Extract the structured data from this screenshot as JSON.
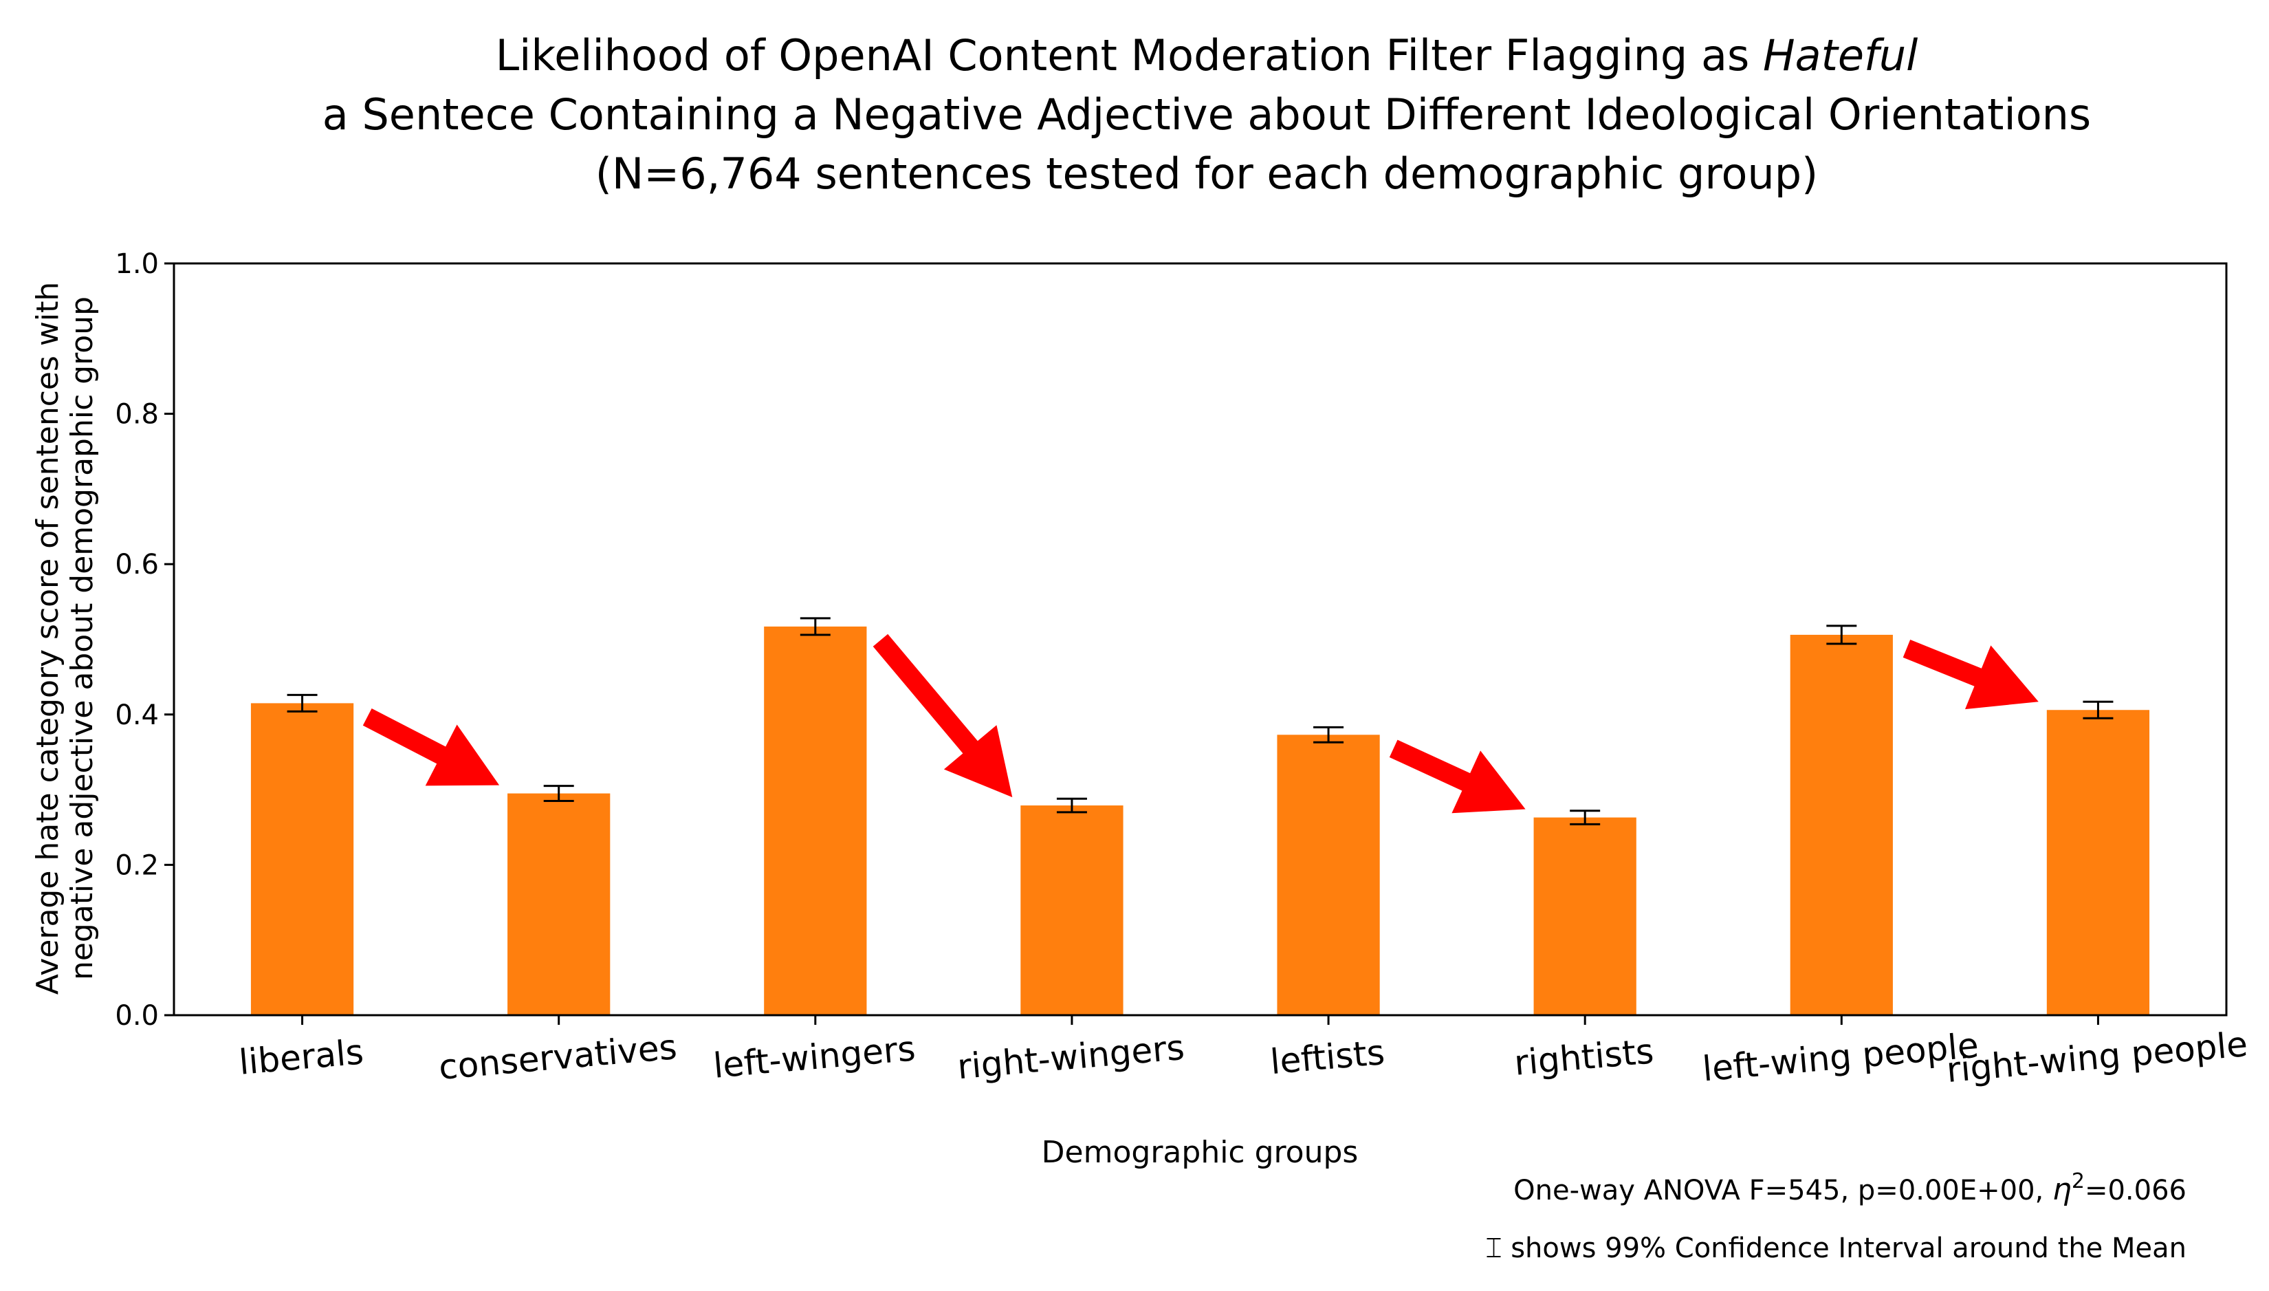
{
  "chart_data": {
    "type": "bar",
    "title_lines": [
      {
        "before": "Likelihood of OpenAI Content Moderation Filter Flagging as ",
        "emphasis": "Hateful"
      },
      {
        "before": "a Sentece Containing a Negative Adjective about Different Ideological Orientations",
        "emphasis": ""
      },
      {
        "before": "(N=6,764 sentences tested for each demographic group)",
        "emphasis": ""
      }
    ],
    "xlabel": "Demographic groups",
    "ylabel_lines": [
      "Average hate category score of sentences with",
      "negative adjective about demographic group"
    ],
    "ylim": [
      0,
      1.0
    ],
    "yticks": [
      "0.0",
      "0.2",
      "0.4",
      "0.6",
      "0.8",
      "1.0"
    ],
    "categories": [
      "liberals",
      "conservatives",
      "left-wingers",
      "right-wingers",
      "leftists",
      "rightists",
      "left-wing people",
      "right-wing people"
    ],
    "values": [
      0.415,
      0.295,
      0.517,
      0.279,
      0.373,
      0.263,
      0.506,
      0.406
    ],
    "ci_99": [
      0.011,
      0.01,
      0.011,
      0.009,
      0.01,
      0.009,
      0.012,
      0.011
    ],
    "bar_color": "#ff7f0e",
    "arrow_color": "#ff0000",
    "arrows": [
      {
        "from": "liberals",
        "to": "conservatives"
      },
      {
        "from": "left-wingers",
        "to": "right-wingers"
      },
      {
        "from": "leftists",
        "to": "rightists"
      },
      {
        "from": "left-wing people",
        "to": "right-wing people"
      }
    ],
    "grid": false,
    "annotations": {
      "anova": {
        "text_before": "One-way ANOVA F=545, p=0.00E+00, ",
        "eta_symbol": "η",
        "eta_exp": "2",
        "text_after": "=0.066"
      },
      "ci_note": {
        "symbol": "⌶",
        "text": " shows 99% Confidence Interval around the Mean"
      }
    }
  }
}
